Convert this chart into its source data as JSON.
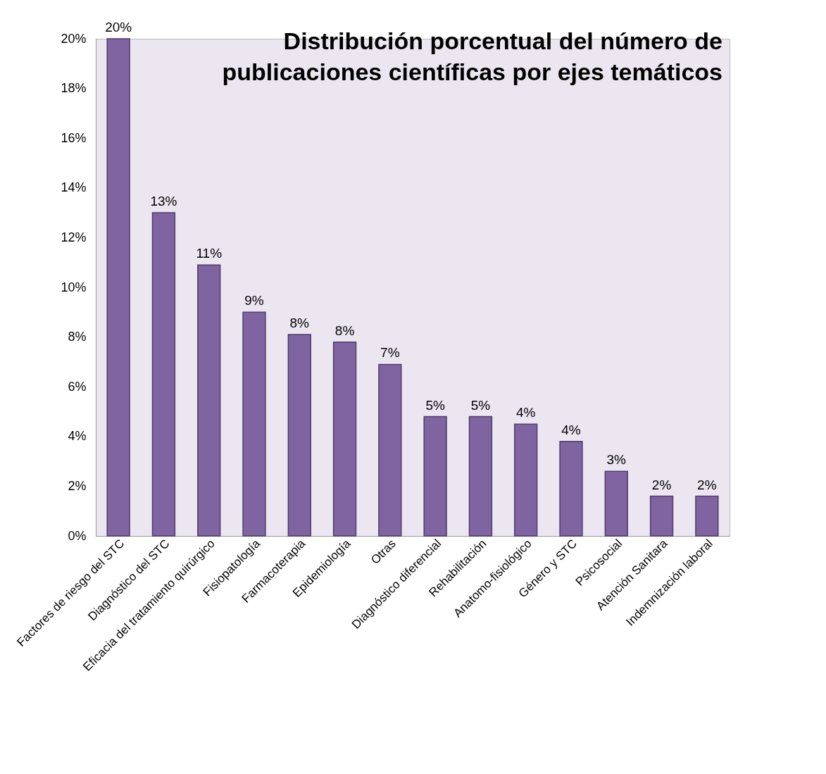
{
  "chart_data": {
    "type": "bar",
    "title": "Distribución porcentual del número de publicaciones científicas por ejes temáticos",
    "categories": [
      "Factores de riesgo del STC",
      "Diagnóstico del STC",
      "Eficacia del tratamiento quirúrgico",
      "Fisiopatología",
      "Farmacoterapia",
      "Epidemiología",
      "Otras",
      "Diagnóstico diferencial",
      "Rehabilitación",
      "Anatomo-fisiológico",
      "Género y STC",
      "Psicosocial",
      "Atención Sanitara",
      "Indemnización laboral"
    ],
    "values": [
      20,
      13,
      10.9,
      9,
      8.1,
      7.8,
      6.9,
      4.8,
      4.8,
      4.5,
      3.8,
      2.6,
      1.6,
      1.6
    ],
    "value_labels": [
      "20%",
      "13%",
      "11%",
      "9%",
      "8%",
      "8%",
      "7%",
      "5%",
      "5%",
      "4%",
      "4%",
      "3%",
      "2%",
      "2%"
    ],
    "color": "#8064a2",
    "ylim": [
      0,
      20
    ],
    "yticks": [
      {
        "value": 0,
        "label": "0%"
      },
      {
        "value": 2,
        "label": "2%"
      },
      {
        "value": 4,
        "label": "4%"
      },
      {
        "value": 6,
        "label": "6%"
      },
      {
        "value": 8,
        "label": "8%"
      },
      {
        "value": 10,
        "label": "10%"
      },
      {
        "value": 12,
        "label": "12%"
      },
      {
        "value": 14,
        "label": "14%"
      },
      {
        "value": 16,
        "label": "16%"
      },
      {
        "value": 18,
        "label": "18%"
      },
      {
        "value": 20,
        "label": "20%"
      }
    ],
    "grid": false
  }
}
